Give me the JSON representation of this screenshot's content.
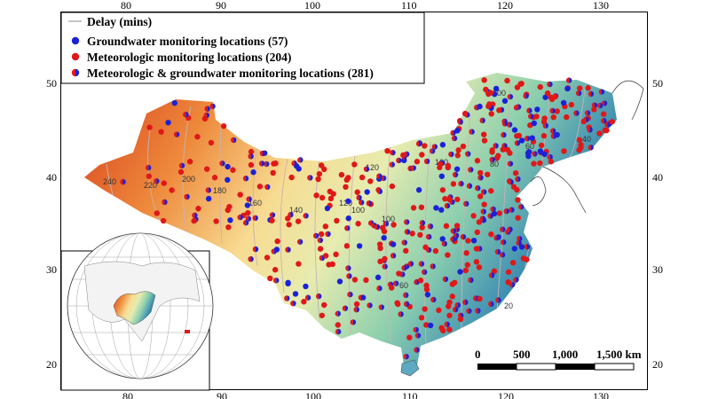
{
  "legend": {
    "items": [
      {
        "label": "Delay (mins)",
        "symbol": "line",
        "color": "#b0b0b0"
      },
      {
        "label": "Groundwater monitoring locations (57)",
        "symbol": "dot",
        "color": "#1a22d8"
      },
      {
        "label": "Meteorologic monitoring locations (204)",
        "symbol": "dot",
        "color": "#e01818"
      },
      {
        "label": "Meteorologic & groundwater monitoring locations (281)",
        "symbol": "dot-split",
        "color": "#9b1f8f"
      }
    ]
  },
  "axes": {
    "top_ticks": [
      "80",
      "90",
      "100",
      "110",
      "120",
      "130"
    ],
    "bottom_ticks": [
      "80",
      "90",
      "100",
      "110",
      "120",
      "130"
    ],
    "left_ticks": [
      "50",
      "40",
      "30",
      "20"
    ],
    "right_ticks": [
      "50",
      "40",
      "30",
      "20"
    ]
  },
  "contour_labels": [
    "20",
    "40",
    "60",
    "60",
    "80",
    "100",
    "100",
    "100",
    "100",
    "120",
    "120",
    "140",
    "160",
    "180",
    "200",
    "220",
    "240"
  ],
  "scale_bar": {
    "labels": [
      "0",
      "500",
      "1,000",
      "1,500 km"
    ]
  },
  "colors": {
    "west": "#d83a1c",
    "middle": "#f4ecaa",
    "east": "#2f86b8",
    "groundwater": "#1a22d8",
    "meteorologic": "#e01818",
    "both": "#9b1f8f"
  }
}
